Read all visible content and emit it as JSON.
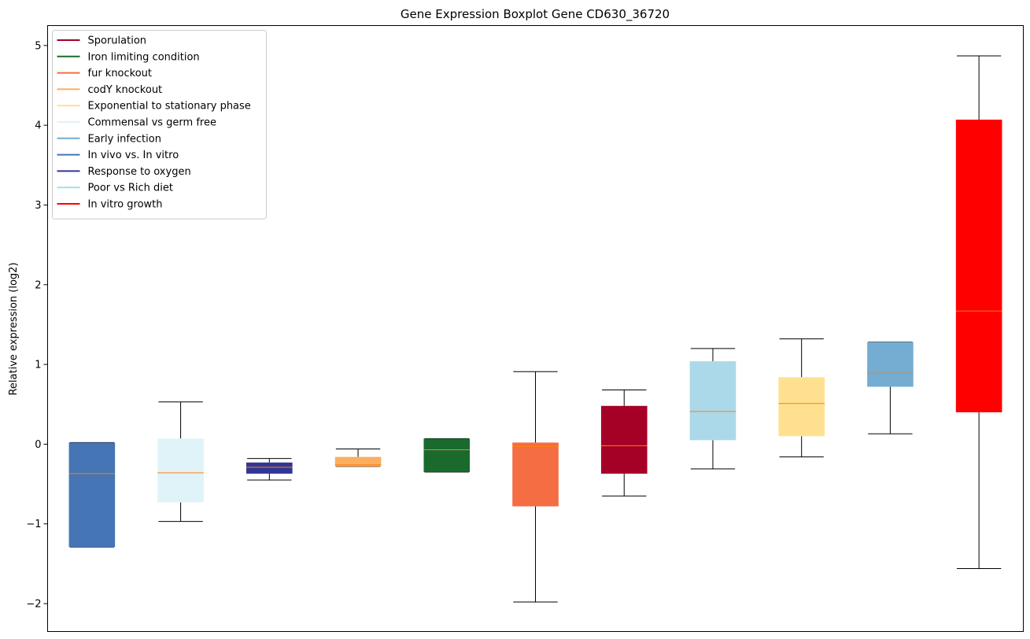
{
  "chart_data": {
    "type": "boxplot",
    "title": "Gene Expression Boxplot Gene CD630_36720",
    "xlabel": "",
    "ylabel": "Relative expression (log2)",
    "ylim": [
      -2.35,
      5.25
    ],
    "yticks": [
      -2,
      -1,
      0,
      1,
      2,
      3,
      4,
      5
    ],
    "ytick_labels": [
      "−2",
      "−1",
      "0",
      "1",
      "2",
      "3",
      "4",
      "5"
    ],
    "grid": false,
    "legend_position": "top-left",
    "median_color": "#ff7f0e",
    "boxes": [
      {
        "name": "In vivo vs. In vitro",
        "color": "#4575b4",
        "whislo": -1.29,
        "q1": -1.29,
        "med": -0.37,
        "q3": 0.02,
        "whishi": 0.02
      },
      {
        "name": "Commensal vs germ free",
        "color": "#e0f3f8",
        "whislo": -0.97,
        "q1": -0.73,
        "med": -0.36,
        "q3": 0.07,
        "whishi": 0.53
      },
      {
        "name": "Response to oxygen",
        "color": "#313695",
        "whislo": -0.45,
        "q1": -0.37,
        "med": -0.29,
        "q3": -0.23,
        "whishi": -0.18
      },
      {
        "name": "codY knockout",
        "color": "#fdae61",
        "whislo": -0.28,
        "q1": -0.28,
        "med": -0.26,
        "q3": -0.16,
        "whishi": -0.06
      },
      {
        "name": "Iron limiting condition",
        "color": "#1a6a2e",
        "whislo": -0.35,
        "q1": -0.35,
        "med": -0.07,
        "q3": 0.07,
        "whishi": 0.07
      },
      {
        "name": "fur knockout",
        "color": "#f46d43",
        "whislo": -1.98,
        "q1": -0.78,
        "med": -0.03,
        "q3": 0.02,
        "whishi": 0.91
      },
      {
        "name": "Sporulation",
        "color": "#a50026",
        "whislo": -0.65,
        "q1": -0.37,
        "med": -0.02,
        "q3": 0.48,
        "whishi": 0.68
      },
      {
        "name": "Poor vs Rich diet",
        "color": "#abd9e9",
        "whislo": -0.31,
        "q1": 0.05,
        "med": 0.41,
        "q3": 1.04,
        "whishi": 1.2
      },
      {
        "name": "Exponential to stationary phase",
        "color": "#fee090",
        "whislo": -0.16,
        "q1": 0.1,
        "med": 0.51,
        "q3": 0.84,
        "whishi": 1.32
      },
      {
        "name": "Early infection",
        "color": "#74add1",
        "whislo": 0.13,
        "q1": 0.72,
        "med": 0.89,
        "q3": 1.28,
        "whishi": 1.28
      },
      {
        "name": "In vitro growth",
        "color": "#ff0000",
        "whislo": -1.56,
        "q1": 0.4,
        "med": 1.67,
        "q3": 4.07,
        "whishi": 4.87
      }
    ],
    "legend": [
      {
        "label": "Sporulation",
        "color": "#a50026"
      },
      {
        "label": "Iron limiting condition",
        "color": "#1a6a2e"
      },
      {
        "label": "fur knockout",
        "color": "#f46d43"
      },
      {
        "label": "codY knockout",
        "color": "#fdae61"
      },
      {
        "label": "Exponential to stationary phase",
        "color": "#fee090"
      },
      {
        "label": "Commensal vs germ free",
        "color": "#e0f3f8"
      },
      {
        "label": "Early infection",
        "color": "#74add1"
      },
      {
        "label": "In vivo vs. In vitro",
        "color": "#4575b4"
      },
      {
        "label": "Response to oxygen",
        "color": "#313695"
      },
      {
        "label": "Poor vs Rich diet",
        "color": "#abd9e9"
      },
      {
        "label": "In vitro growth",
        "color": "#ff0000"
      }
    ]
  }
}
